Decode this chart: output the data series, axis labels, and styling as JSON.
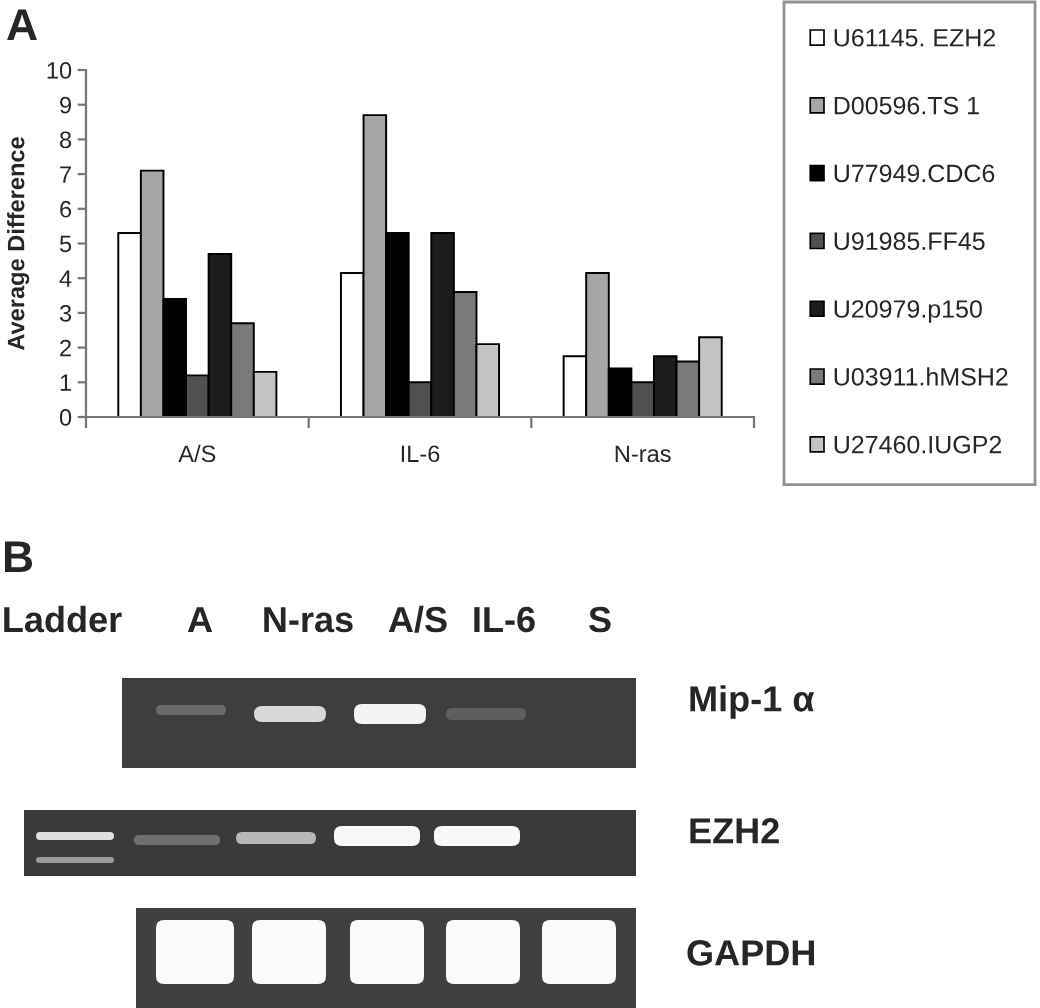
{
  "chart_data": {
    "type": "bar",
    "categories": [
      "A/S",
      "IL-6",
      "N-ras"
    ],
    "ylabel": "Average Difference",
    "ylim": [
      0,
      10
    ],
    "yticks": [
      0,
      1,
      2,
      3,
      4,
      5,
      6,
      7,
      8,
      9,
      10
    ],
    "legend": "right",
    "series": [
      {
        "name": "U61145. EZH2",
        "color": "#ffffff",
        "values": [
          5.3,
          4.15,
          1.75
        ]
      },
      {
        "name": "D00596.TS 1",
        "color": "#a6a6a6",
        "values": [
          7.1,
          8.7,
          4.15
        ]
      },
      {
        "name": "U77949.CDC6",
        "color": "#000000",
        "values": [
          3.4,
          5.3,
          1.4
        ]
      },
      {
        "name": "U91985.FF45",
        "color": "#505050",
        "values": [
          1.2,
          1.0,
          1.0
        ]
      },
      {
        "name": "U20979.p150",
        "color": "#1c1c1c",
        "values": [
          4.7,
          5.3,
          1.75
        ]
      },
      {
        "name": "U03911.hMSH2",
        "color": "#7a7a7a",
        "values": [
          2.7,
          3.6,
          1.6
        ]
      },
      {
        "name": "U27460.IUGP2",
        "color": "#c4c4c4",
        "values": [
          1.3,
          2.1,
          2.3
        ]
      }
    ],
    "annotations": [
      "A",
      "B",
      "Ladder",
      "A",
      "N-ras",
      "A/S",
      "IL-6",
      "S",
      "Mip-1 α",
      "EZH2",
      "GAPDH"
    ]
  }
}
